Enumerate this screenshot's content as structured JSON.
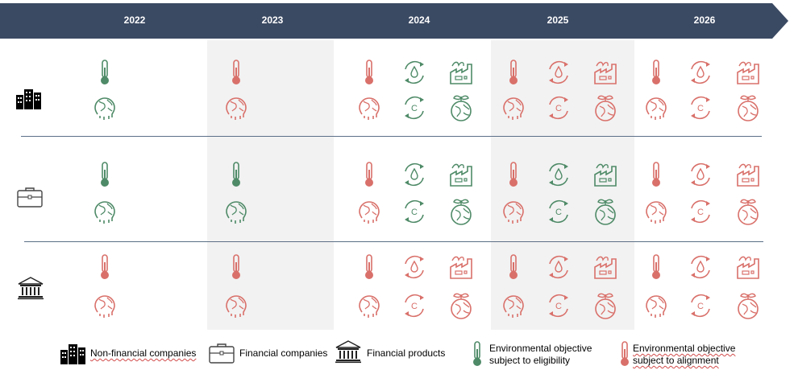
{
  "years": [
    "2022",
    "2023",
    "2024",
    "2025",
    "2026"
  ],
  "colors": {
    "banner": "#3b4a63",
    "eligibility": "#4e8a67",
    "alignment": "#d9706a",
    "shade": "#f2f2f2",
    "divider": "#5b6f87"
  },
  "icon_names": [
    "thermometer-icon",
    "water-cycle-icon",
    "factory-icon",
    "melting-globe-icon",
    "carbon-cycle-icon",
    "sprout-globe-icon"
  ],
  "rows": [
    {
      "category_icon": "office-buildings-icon",
      "status": [
        [
          "E",
          "A",
          "AEEEE",
          "AAAAA",
          "AAAAA"
        ],
        [
          "E",
          "A",
          "AEEEE",
          "AAAAA",
          "AAAAA"
        ]
      ]
    }
  ],
  "grid": {
    "non_financial": {
      "2022": [
        "E",
        "-",
        "-",
        "E",
        "-",
        "-"
      ],
      "2023": [
        "A",
        "-",
        "-",
        "A",
        "-",
        "-"
      ],
      "2024": [
        "A",
        "E",
        "E",
        "A",
        "E",
        "E"
      ],
      "2025": [
        "A",
        "A",
        "A",
        "A",
        "A",
        "A"
      ],
      "2026": [
        "A",
        "A",
        "A",
        "A",
        "A",
        "A"
      ]
    },
    "financial_companies": {
      "2022": [
        "E",
        "-",
        "-",
        "E",
        "-",
        "-"
      ],
      "2023": [
        "E",
        "-",
        "-",
        "E",
        "-",
        "-"
      ],
      "2024": [
        "A",
        "E",
        "E",
        "A",
        "E",
        "E"
      ],
      "2025": [
        "A",
        "E",
        "E",
        "A",
        "E",
        "E"
      ],
      "2026": [
        "A",
        "A",
        "A",
        "A",
        "A",
        "A"
      ]
    },
    "financial_products": {
      "2022": [
        "A",
        "-",
        "-",
        "A",
        "-",
        "-"
      ],
      "2023": [
        "A",
        "-",
        "-",
        "A",
        "-",
        "-"
      ],
      "2024": [
        "A",
        "A",
        "A",
        "A",
        "A",
        "A"
      ],
      "2025": [
        "A",
        "A",
        "A",
        "A",
        "A",
        "A"
      ],
      "2026": [
        "A",
        "A",
        "A",
        "A",
        "A",
        "A"
      ]
    }
  },
  "legend": {
    "non_financial": "Non-financial companies",
    "financial_companies": "Financial companies",
    "financial_products": "Financial products",
    "eligibility": "Environmental objective subject to eligibility",
    "alignment": "Environmental objective subject to alignment"
  }
}
